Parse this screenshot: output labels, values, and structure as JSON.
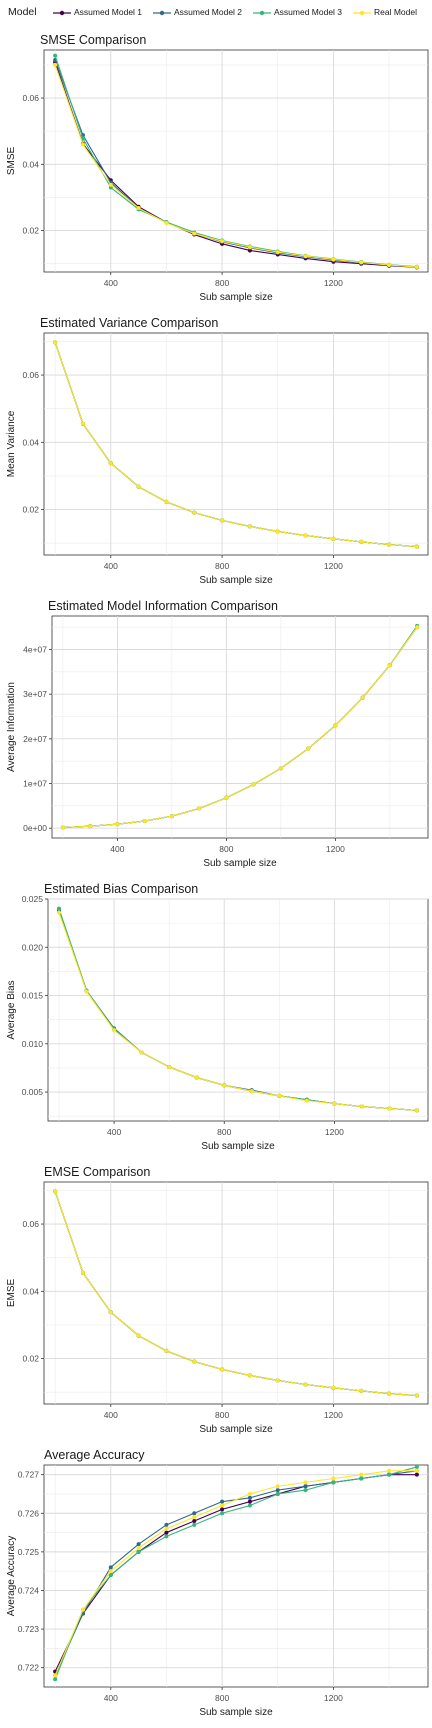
{
  "legend": {
    "title": "Model",
    "items": [
      {
        "label": "Assumed Model 1",
        "color": "#440154"
      },
      {
        "label": "Assumed Model 2",
        "color": "#31688e"
      },
      {
        "label": "Assumed Model 3",
        "color": "#35b779"
      },
      {
        "label": "Real Model",
        "color": "#fde725"
      }
    ]
  },
  "chart_data": [
    {
      "type": "line",
      "title": "SMSE Comparison",
      "xlabel": "Sub sample size",
      "ylabel": "SMSE",
      "x": [
        200,
        300,
        400,
        500,
        600,
        700,
        800,
        900,
        1000,
        1100,
        1200,
        1300,
        1400,
        1500
      ],
      "xlim": [
        160,
        1540
      ],
      "ylim": [
        0.0075,
        0.0745
      ],
      "xticks": [
        400,
        800,
        1200
      ],
      "yticks": [
        0.02,
        0.04,
        0.06
      ],
      "yticklabels": [
        "0.02",
        "0.04",
        "0.06"
      ],
      "grid": true,
      "legend": "top",
      "series": [
        {
          "name": "Assumed Model 1",
          "values": [
            0.0708,
            0.0462,
            0.0352,
            0.0272,
            0.0225,
            0.0188,
            0.016,
            0.014,
            0.0128,
            0.0116,
            0.0106,
            0.01,
            0.0094,
            0.0089
          ]
        },
        {
          "name": "Assumed Model 2",
          "values": [
            0.0715,
            0.0488,
            0.0345,
            0.0268,
            0.0224,
            0.0192,
            0.0166,
            0.0148,
            0.0133,
            0.0121,
            0.0111,
            0.0103,
            0.0096,
            0.009
          ]
        },
        {
          "name": "Assumed Model 3",
          "values": [
            0.0728,
            0.0478,
            0.033,
            0.0264,
            0.0226,
            0.0194,
            0.017,
            0.0152,
            0.0137,
            0.0124,
            0.0114,
            0.0105,
            0.0097,
            0.0091
          ]
        },
        {
          "name": "Real Model",
          "values": [
            0.07,
            0.046,
            0.0338,
            0.0268,
            0.0223,
            0.0191,
            0.0168,
            0.015,
            0.0135,
            0.0123,
            0.0113,
            0.0104,
            0.0096,
            0.009
          ]
        }
      ]
    },
    {
      "type": "line",
      "title": "Estimated Variance Comparison",
      "xlabel": "Sub sample size",
      "ylabel": "Mean Variance",
      "x": [
        200,
        300,
        400,
        500,
        600,
        700,
        800,
        900,
        1000,
        1100,
        1200,
        1300,
        1400,
        1500
      ],
      "xlim": [
        160,
        1540
      ],
      "ylim": [
        0.0065,
        0.0725
      ],
      "xticks": [
        400,
        800,
        1200
      ],
      "yticks": [
        0.02,
        0.04,
        0.06
      ],
      "yticklabels": [
        "0.02",
        "0.04",
        "0.06"
      ],
      "grid": true,
      "series": [
        {
          "name": "Assumed Model 1",
          "values": [
            0.0697,
            0.0455,
            0.0338,
            0.0268,
            0.0223,
            0.0191,
            0.0168,
            0.015,
            0.0135,
            0.0123,
            0.0113,
            0.0104,
            0.0096,
            0.009
          ]
        },
        {
          "name": "Assumed Model 2",
          "values": [
            0.0697,
            0.0455,
            0.0338,
            0.0268,
            0.0223,
            0.0191,
            0.0168,
            0.015,
            0.0135,
            0.0123,
            0.0113,
            0.0104,
            0.0096,
            0.009
          ]
        },
        {
          "name": "Assumed Model 3",
          "values": [
            0.0697,
            0.0455,
            0.0338,
            0.0268,
            0.0223,
            0.0191,
            0.0168,
            0.015,
            0.0135,
            0.0123,
            0.0113,
            0.0104,
            0.0096,
            0.009
          ]
        },
        {
          "name": "Real Model",
          "values": [
            0.0697,
            0.0455,
            0.0338,
            0.0268,
            0.0223,
            0.0191,
            0.0168,
            0.015,
            0.0135,
            0.0123,
            0.0113,
            0.0104,
            0.0096,
            0.009
          ]
        }
      ]
    },
    {
      "type": "line",
      "title": "Estimated Model Information Comparison",
      "xlabel": "Sub sample size",
      "ylabel": "Average Information",
      "x": [
        200,
        300,
        400,
        500,
        600,
        700,
        800,
        900,
        1000,
        1100,
        1200,
        1300,
        1400,
        1500
      ],
      "xlim": [
        160,
        1540
      ],
      "ylim": [
        -2200000,
        47500000
      ],
      "xticks": [
        400,
        800,
        1200
      ],
      "yticks": [
        0,
        10000000,
        20000000,
        30000000,
        40000000
      ],
      "yticklabels": [
        "0e+00",
        "1e+07",
        "2e+07",
        "3e+07",
        "4e+07"
      ],
      "grid": true,
      "series": [
        {
          "name": "Assumed Model 1",
          "values": [
            150000,
            450000,
            900000,
            1600000,
            2700000,
            4400000,
            6800000,
            9800000,
            13400000,
            17800000,
            23000000,
            29200000,
            36500000,
            45000000
          ]
        },
        {
          "name": "Assumed Model 2",
          "values": [
            150000,
            450000,
            900000,
            1600000,
            2700000,
            4400000,
            6800000,
            9800000,
            13400000,
            17800000,
            23000000,
            29200000,
            36500000,
            45200000
          ]
        },
        {
          "name": "Assumed Model 3",
          "values": [
            150000,
            450000,
            900000,
            1600000,
            2700000,
            4400000,
            6800000,
            9800000,
            13400000,
            17800000,
            23000000,
            29200000,
            36500000,
            45300000
          ]
        },
        {
          "name": "Real Model",
          "values": [
            150000,
            450000,
            900000,
            1600000,
            2700000,
            4400000,
            6800000,
            9800000,
            13400000,
            17800000,
            23000000,
            29200000,
            36500000,
            45000000
          ]
        }
      ]
    },
    {
      "type": "line",
      "title": "Estimated Bias Comparison",
      "xlabel": "Sub sample size",
      "ylabel": "Average Bias",
      "x": [
        200,
        300,
        400,
        500,
        600,
        700,
        800,
        900,
        1000,
        1100,
        1200,
        1300,
        1400,
        1500
      ],
      "xlim": [
        160,
        1540
      ],
      "ylim": [
        0.002,
        0.025
      ],
      "xticks": [
        400,
        800,
        1200
      ],
      "yticks": [
        0.005,
        0.01,
        0.015,
        0.02,
        0.025
      ],
      "yticklabels": [
        "0.005",
        "0.010",
        "0.015",
        "0.020",
        "0.025"
      ],
      "grid": true,
      "series": [
        {
          "name": "Assumed Model 1",
          "values": [
            0.0238,
            0.0155,
            0.0115,
            0.0091,
            0.0076,
            0.0065,
            0.0057,
            0.0051,
            0.0046,
            0.0042,
            0.0038,
            0.0035,
            0.0033,
            0.0031
          ]
        },
        {
          "name": "Assumed Model 2",
          "values": [
            0.0239,
            0.0155,
            0.0116,
            0.0091,
            0.0076,
            0.0065,
            0.0057,
            0.0052,
            0.0046,
            0.0042,
            0.0038,
            0.0035,
            0.0033,
            0.0031
          ]
        },
        {
          "name": "Assumed Model 3",
          "values": [
            0.024,
            0.0155,
            0.0115,
            0.0091,
            0.0076,
            0.0065,
            0.0057,
            0.0051,
            0.0046,
            0.0042,
            0.0038,
            0.0035,
            0.0033,
            0.0031
          ]
        },
        {
          "name": "Real Model",
          "values": [
            0.0236,
            0.0154,
            0.0114,
            0.0091,
            0.0076,
            0.0065,
            0.0057,
            0.0051,
            0.0046,
            0.0041,
            0.0038,
            0.0035,
            0.0033,
            0.0031
          ]
        }
      ]
    },
    {
      "type": "line",
      "title": "EMSE Comparison",
      "xlabel": "Sub sample size",
      "ylabel": "EMSE",
      "x": [
        200,
        300,
        400,
        500,
        600,
        700,
        800,
        900,
        1000,
        1100,
        1200,
        1300,
        1400,
        1500
      ],
      "xlim": [
        160,
        1540
      ],
      "ylim": [
        0.0065,
        0.0725
      ],
      "xticks": [
        400,
        800,
        1200
      ],
      "yticks": [
        0.02,
        0.04,
        0.06
      ],
      "yticklabels": [
        "0.02",
        "0.04",
        "0.06"
      ],
      "grid": true,
      "series": [
        {
          "name": "Assumed Model 1",
          "values": [
            0.0697,
            0.0455,
            0.0338,
            0.0268,
            0.0223,
            0.0191,
            0.0168,
            0.015,
            0.0135,
            0.0123,
            0.0113,
            0.0104,
            0.0096,
            0.009
          ]
        },
        {
          "name": "Assumed Model 2",
          "values": [
            0.0697,
            0.0455,
            0.0338,
            0.0268,
            0.0223,
            0.0191,
            0.0168,
            0.015,
            0.0135,
            0.0123,
            0.0113,
            0.0104,
            0.0096,
            0.009
          ]
        },
        {
          "name": "Assumed Model 3",
          "values": [
            0.0697,
            0.0455,
            0.0338,
            0.0268,
            0.0223,
            0.0191,
            0.0168,
            0.015,
            0.0135,
            0.0123,
            0.0113,
            0.0104,
            0.0096,
            0.009
          ]
        },
        {
          "name": "Real Model",
          "values": [
            0.0697,
            0.0455,
            0.0338,
            0.0268,
            0.0223,
            0.0191,
            0.0168,
            0.015,
            0.0135,
            0.0123,
            0.0113,
            0.0104,
            0.0096,
            0.009
          ]
        }
      ]
    },
    {
      "type": "line",
      "title": "Average Accuracy",
      "xlabel": "Sub sample size",
      "ylabel": "Average Accuracy",
      "x": [
        200,
        300,
        400,
        500,
        600,
        700,
        800,
        900,
        1000,
        1100,
        1200,
        1300,
        1400,
        1500
      ],
      "xlim": [
        160,
        1540
      ],
      "ylim": [
        0.7215,
        0.72725
      ],
      "xticks": [
        400,
        800,
        1200
      ],
      "yticks": [
        0.722,
        0.723,
        0.724,
        0.725,
        0.726,
        0.727
      ],
      "yticklabels": [
        "0.722",
        "0.723",
        "0.724",
        "0.725",
        "0.726",
        "0.727"
      ],
      "grid": true,
      "series": [
        {
          "name": "Assumed Model 1",
          "values": [
            0.7219,
            0.7234,
            0.7244,
            0.725,
            0.7255,
            0.7258,
            0.7261,
            0.7263,
            0.7265,
            0.7267,
            0.7268,
            0.7269,
            0.727,
            0.727
          ]
        },
        {
          "name": "Assumed Model 2",
          "values": [
            0.7218,
            0.7234,
            0.7246,
            0.7252,
            0.7257,
            0.726,
            0.7263,
            0.7264,
            0.7266,
            0.7267,
            0.7268,
            0.7269,
            0.727,
            0.7271
          ]
        },
        {
          "name": "Assumed Model 3",
          "values": [
            0.7217,
            0.7235,
            0.7244,
            0.725,
            0.7254,
            0.7257,
            0.726,
            0.7262,
            0.7265,
            0.7266,
            0.7268,
            0.7269,
            0.727,
            0.7272
          ]
        },
        {
          "name": "Real Model",
          "values": [
            0.7218,
            0.7235,
            0.7245,
            0.7251,
            0.7256,
            0.7259,
            0.7262,
            0.7265,
            0.7267,
            0.7268,
            0.7269,
            0.727,
            0.7271,
            0.7271
          ]
        }
      ]
    }
  ]
}
